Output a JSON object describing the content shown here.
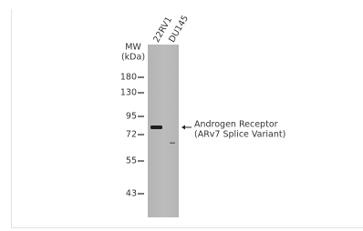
{
  "lanes": [
    "22RV1",
    "DU145"
  ],
  "mw": {
    "title": "MW",
    "unit": "(kDa)",
    "markers": [
      "180",
      "130",
      "95",
      "72",
      "55",
      "43"
    ]
  },
  "annotation": [
    "Androgen Receptor",
    "(ARv7 Splice Variant)"
  ]
}
